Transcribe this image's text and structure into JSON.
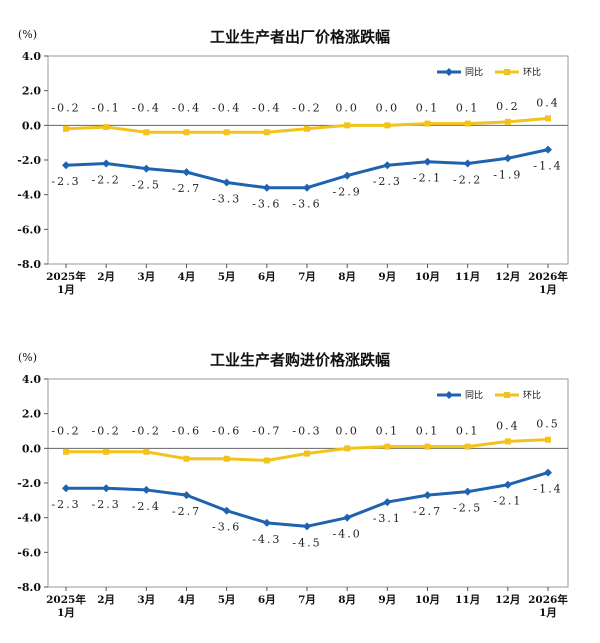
{
  "unit_label": "(%)",
  "colors": {
    "yoy": "#1f63b0",
    "mom": "#f2c31b",
    "axis": "#555555"
  },
  "chart_data": [
    {
      "type": "line",
      "title": "工业生产者出厂价格涨跌幅",
      "ylabel": "(%)",
      "ylim": [
        -8.0,
        4.0
      ],
      "yticks": [
        "4.0",
        "2.0",
        "0.0",
        "-2.0",
        "-4.0",
        "-6.0",
        "-8.0"
      ],
      "categories": [
        "2025年\n1月",
        "2月",
        "3月",
        "4月",
        "5月",
        "6月",
        "7月",
        "8月",
        "9月",
        "10月",
        "11月",
        "12月",
        "2026年\n1月"
      ],
      "legend": "top-right",
      "series": [
        {
          "name": "同比",
          "values": [
            -2.3,
            -2.2,
            -2.5,
            -2.7,
            -3.3,
            -3.6,
            -3.6,
            -2.9,
            -2.3,
            -2.1,
            -2.2,
            -1.9,
            -1.4
          ],
          "labels": [
            "-2.3",
            "-2.2",
            "-2.5",
            "-2.7",
            "-3.3",
            "-3.6",
            "-3.6",
            "-2.9",
            "-2.3",
            "-2.1",
            "-2.2",
            "-1.9",
            "-1.4"
          ]
        },
        {
          "name": "环比",
          "values": [
            -0.2,
            -0.1,
            -0.4,
            -0.4,
            -0.4,
            -0.4,
            -0.2,
            0.0,
            0.0,
            0.1,
            0.1,
            0.2,
            0.4
          ],
          "labels": [
            "-0.2",
            "-0.1",
            "-0.4",
            "-0.4",
            "-0.4",
            "-0.4",
            "-0.2",
            "0.0",
            "0.0",
            "0.1",
            "0.1",
            "0.2",
            "0.4"
          ]
        }
      ]
    },
    {
      "type": "line",
      "title": "工业生产者购进价格涨跌幅",
      "ylabel": "(%)",
      "ylim": [
        -8.0,
        4.0
      ],
      "yticks": [
        "4.0",
        "2.0",
        "0.0",
        "-2.0",
        "-4.0",
        "-6.0",
        "-8.0"
      ],
      "categories": [
        "2025年\n1月",
        "2月",
        "3月",
        "4月",
        "5月",
        "6月",
        "7月",
        "8月",
        "9月",
        "10月",
        "11月",
        "12月",
        "2026年\n1月"
      ],
      "legend": "top-right",
      "series": [
        {
          "name": "同比",
          "values": [
            -2.3,
            -2.3,
            -2.4,
            -2.7,
            -3.6,
            -4.3,
            -4.5,
            -4.0,
            -3.1,
            -2.7,
            -2.5,
            -2.1,
            -1.4
          ],
          "labels": [
            "-2.3",
            "-2.3",
            "-2.4",
            "-2.7",
            "-3.6",
            "-4.3",
            "-4.5",
            "-4.0",
            "-3.1",
            "-2.7",
            "-2.5",
            "-2.1",
            "-1.4"
          ]
        },
        {
          "name": "环比",
          "values": [
            -0.2,
            -0.2,
            -0.2,
            -0.6,
            -0.6,
            -0.7,
            -0.3,
            0.0,
            0.1,
            0.1,
            0.1,
            0.4,
            0.5
          ],
          "labels": [
            "-0.2",
            "-0.2",
            "-0.2",
            "-0.6",
            "-0.6",
            "-0.7",
            "-0.3",
            "0.0",
            "0.1",
            "0.1",
            "0.1",
            "0.4",
            "0.5"
          ]
        }
      ]
    }
  ]
}
